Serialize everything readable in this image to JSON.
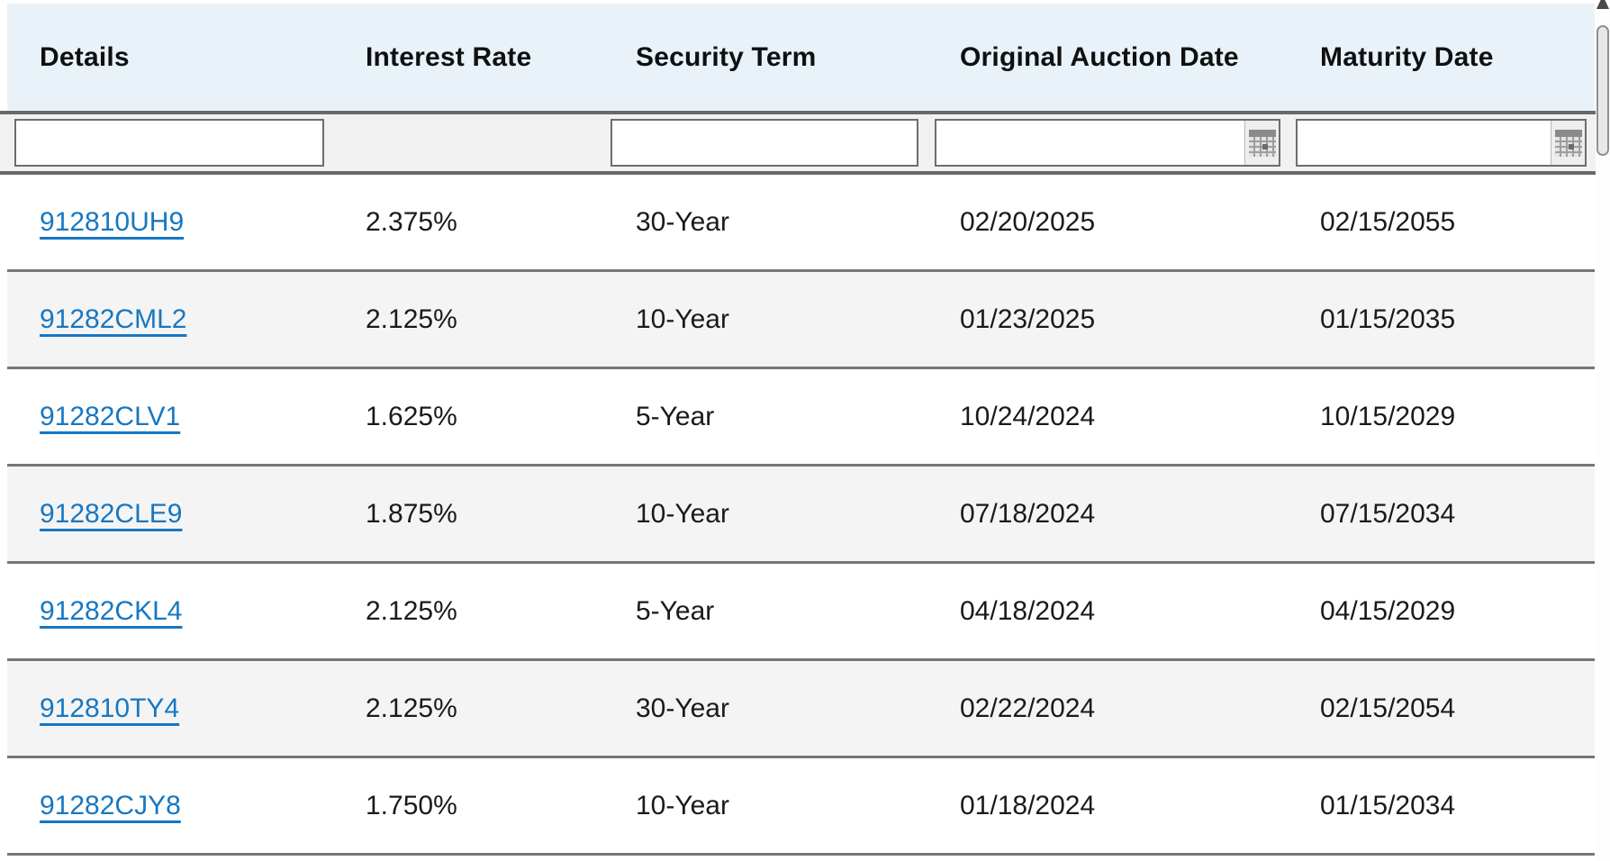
{
  "table": {
    "columns": [
      {
        "id": "details",
        "label": "Details",
        "filter": {
          "type": "text",
          "value": "",
          "placeholder": ""
        }
      },
      {
        "id": "interest_rate",
        "label": "Interest Rate",
        "filter": null
      },
      {
        "id": "security_term",
        "label": "Security Term",
        "filter": {
          "type": "text",
          "value": "",
          "placeholder": ""
        }
      },
      {
        "id": "original_auction_date",
        "label": "Original Auction Date",
        "filter": {
          "type": "date",
          "value": "",
          "placeholder": ""
        }
      },
      {
        "id": "maturity_date",
        "label": "Maturity Date",
        "filter": {
          "type": "date",
          "value": "",
          "placeholder": ""
        }
      }
    ],
    "rows": [
      {
        "cusip": "912810UH9",
        "interest_rate": "2.375%",
        "security_term": "30-Year",
        "original_auction_date": "02/20/2025",
        "maturity_date": "02/15/2055"
      },
      {
        "cusip": "91282CML2",
        "interest_rate": "2.125%",
        "security_term": "10-Year",
        "original_auction_date": "01/23/2025",
        "maturity_date": "01/15/2035"
      },
      {
        "cusip": "91282CLV1",
        "interest_rate": "1.625%",
        "security_term": "5-Year",
        "original_auction_date": "10/24/2024",
        "maturity_date": "10/15/2029"
      },
      {
        "cusip": "91282CLE9",
        "interest_rate": "1.875%",
        "security_term": "10-Year",
        "original_auction_date": "07/18/2024",
        "maturity_date": "07/15/2034"
      },
      {
        "cusip": "91282CKL4",
        "interest_rate": "2.125%",
        "security_term": "5-Year",
        "original_auction_date": "04/18/2024",
        "maturity_date": "04/15/2029"
      },
      {
        "cusip": "912810TY4",
        "interest_rate": "2.125%",
        "security_term": "30-Year",
        "original_auction_date": "02/22/2024",
        "maturity_date": "02/15/2054"
      },
      {
        "cusip": "91282CJY8",
        "interest_rate": "1.750%",
        "security_term": "10-Year",
        "original_auction_date": "01/18/2024",
        "maturity_date": "01/15/2034"
      }
    ]
  },
  "icons": {
    "calendar": "calendar-grid-icon",
    "scrollbar_up": "scrollbar-up-arrow"
  },
  "colors": {
    "header_bg": "#e9f2f9",
    "filter_bg": "#f1f1f1",
    "row_alt_bg": "#f4f4f4",
    "separator": "#696969",
    "row_separator": "#767676",
    "input_border": "#6d6d6d",
    "link": "#1777c1",
    "text": "#1a1a1a"
  }
}
